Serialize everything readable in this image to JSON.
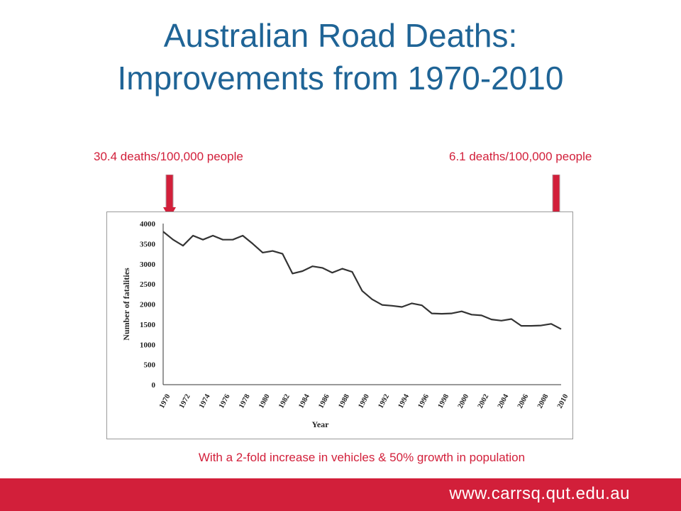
{
  "slide": {
    "title_line1": "Australian Road Deaths:",
    "title_line2": "Improvements from 1970-2010",
    "callout_left": "30.4 deaths/100,000 people",
    "callout_right": "6.1 deaths/100,000 people",
    "caption": "With a 2-fold increase in vehicles & 50% growth in population",
    "footer_url": "www.carrsq.qut.edu.au"
  },
  "colors": {
    "title": "#1f6496",
    "accent_red": "#d21f3a",
    "line": "#333333"
  },
  "chart_data": {
    "type": "line",
    "xlabel": "Year",
    "ylabel": "Number of fatalities",
    "ylim": [
      0,
      4000
    ],
    "yticks": [
      0,
      500,
      1000,
      1500,
      2000,
      2500,
      3000,
      3500,
      4000
    ],
    "xlim": [
      1970,
      2010
    ],
    "xtick_labels": [
      "1970",
      "1972",
      "1974",
      "1976",
      "1978",
      "1980",
      "1982",
      "1984",
      "1986",
      "1988",
      "1990",
      "1992",
      "1994",
      "1996",
      "1998",
      "2000",
      "2002",
      "2004",
      "2006",
      "2008",
      "2010"
    ],
    "grid": false,
    "series": [
      {
        "x": [
          1970,
          1971,
          1972,
          1973,
          1974,
          1975,
          1976,
          1977,
          1978,
          1979,
          1980,
          1981,
          1982,
          1983,
          1984,
          1985,
          1986,
          1987,
          1988,
          1989,
          1990,
          1991,
          1992,
          1993,
          1994,
          1995,
          1996,
          1997,
          1998,
          1999,
          2000,
          2001,
          2002,
          2003,
          2004,
          2005,
          2006,
          2007,
          2008,
          2009,
          2010
        ],
        "y": [
          3800,
          3600,
          3450,
          3700,
          3600,
          3700,
          3600,
          3600,
          3700,
          3500,
          3280,
          3320,
          3250,
          2760,
          2820,
          2940,
          2900,
          2780,
          2880,
          2800,
          2330,
          2120,
          1980,
          1960,
          1930,
          2020,
          1970,
          1770,
          1760,
          1770,
          1820,
          1740,
          1720,
          1620,
          1590,
          1630,
          1460,
          1460,
          1470,
          1510,
          1380
        ]
      }
    ]
  }
}
